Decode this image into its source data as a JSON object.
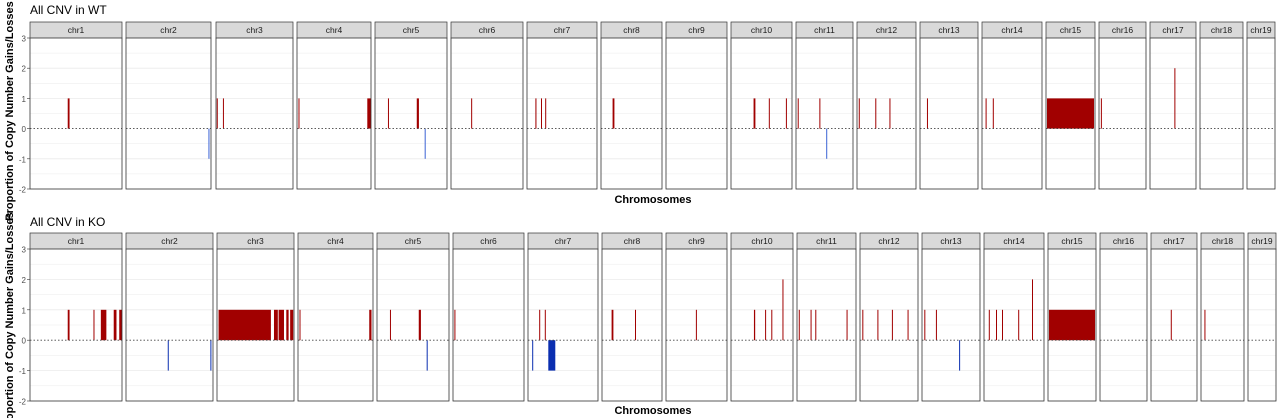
{
  "colors": {
    "gain": "#a10000",
    "loss_wt": "#3a62d4",
    "loss_ko": "#0a2eb0",
    "strip": "#d9d9d9",
    "grid": "#ebebeb",
    "baseline": "#444444"
  },
  "chart_data": [
    {
      "type": "bar",
      "title": "All CNV in WT",
      "xlabel": "Chromosomes",
      "ylabel": "Proportion of Copy Number Gains/Losses",
      "ylim": [
        -2,
        3
      ],
      "yticks": [
        "3",
        "2",
        "1",
        "0",
        "-1",
        "-2"
      ],
      "grid": true,
      "panels": [
        {
          "chr": "chr1",
          "bars": [
            {
              "pos": 0.41,
              "w": 0.02,
              "v": 1
            }
          ]
        },
        {
          "chr": "chr2",
          "bars": [
            {
              "pos": 0.97,
              "w": 0.01,
              "v": -1
            }
          ]
        },
        {
          "chr": "chr3",
          "bars": [
            {
              "pos": 0.01,
              "w": 0.01,
              "v": 1
            },
            {
              "pos": 0.09,
              "w": 0.01,
              "v": 1
            }
          ]
        },
        {
          "chr": "chr4",
          "bars": [
            {
              "pos": 0.02,
              "w": 0.01,
              "v": 1
            },
            {
              "pos": 0.95,
              "w": 0.05,
              "v": 1
            }
          ]
        },
        {
          "chr": "chr5",
          "bars": [
            {
              "pos": 0.18,
              "w": 0.01,
              "v": 1
            },
            {
              "pos": 0.58,
              "w": 0.03,
              "v": 1
            },
            {
              "pos": 0.69,
              "w": 0.01,
              "v": -1
            }
          ]
        },
        {
          "chr": "chr6",
          "bars": [
            {
              "pos": 0.28,
              "w": 0.01,
              "v": 1
            }
          ]
        },
        {
          "chr": "chr7",
          "bars": [
            {
              "pos": 0.12,
              "w": 0.015,
              "v": 1
            },
            {
              "pos": 0.2,
              "w": 0.01,
              "v": 1
            },
            {
              "pos": 0.26,
              "w": 0.01,
              "v": 1
            }
          ]
        },
        {
          "chr": "chr8",
          "bars": [
            {
              "pos": 0.19,
              "w": 0.03,
              "v": 1
            }
          ]
        },
        {
          "chr": "chr9",
          "bars": []
        },
        {
          "chr": "chr10",
          "bars": [
            {
              "pos": 0.37,
              "w": 0.03,
              "v": 1
            },
            {
              "pos": 0.62,
              "w": 0.01,
              "v": 1
            },
            {
              "pos": 0.9,
              "w": 0.01,
              "v": 1
            }
          ]
        },
        {
          "chr": "chr11",
          "bars": [
            {
              "pos": 0.03,
              "w": 0.01,
              "v": 1
            },
            {
              "pos": 0.41,
              "w": 0.01,
              "v": 1
            },
            {
              "pos": 0.53,
              "w": 0.01,
              "v": -1
            }
          ]
        },
        {
          "chr": "chr12",
          "bars": [
            {
              "pos": 0.03,
              "w": 0.01,
              "v": 1
            },
            {
              "pos": 0.31,
              "w": 0.01,
              "v": 1
            },
            {
              "pos": 0.55,
              "w": 0.01,
              "v": 1
            }
          ]
        },
        {
          "chr": "chr13",
          "bars": [
            {
              "pos": 0.12,
              "w": 0.01,
              "v": 1
            }
          ]
        },
        {
          "chr": "chr14",
          "bars": [
            {
              "pos": 0.06,
              "w": 0.01,
              "v": 1
            },
            {
              "pos": 0.18,
              "w": 0.01,
              "v": 1
            }
          ]
        },
        {
          "chr": "chr15",
          "bars": [
            {
              "pos": 0.02,
              "w": 0.96,
              "v": 1
            }
          ]
        },
        {
          "chr": "chr16",
          "bars": [
            {
              "pos": 0.04,
              "w": 0.02,
              "v": 1
            }
          ]
        },
        {
          "chr": "chr17",
          "bars": [
            {
              "pos": 0.53,
              "w": 0.02,
              "v": 2
            }
          ]
        },
        {
          "chr": "chr18",
          "bars": []
        },
        {
          "chr": "chr19",
          "bars": []
        }
      ]
    },
    {
      "type": "bar",
      "title": "All CNV in KO",
      "xlabel": "Chromosomes",
      "ylabel": "Proportion of Copy Number Gains/Losses",
      "ylim": [
        -2,
        3
      ],
      "yticks": [
        "3",
        "2",
        "1",
        "0",
        "-1",
        "-2"
      ],
      "grid": true,
      "panels": [
        {
          "chr": "chr1",
          "bars": [
            {
              "pos": 0.41,
              "w": 0.02,
              "v": 1
            },
            {
              "pos": 0.69,
              "w": 0.01,
              "v": 1
            },
            {
              "pos": 0.77,
              "w": 0.06,
              "v": 1
            },
            {
              "pos": 0.91,
              "w": 0.03,
              "v": 1
            },
            {
              "pos": 0.97,
              "w": 0.03,
              "v": 1
            }
          ]
        },
        {
          "chr": "chr2",
          "bars": [
            {
              "pos": 0.48,
              "w": 0.01,
              "v": -1
            },
            {
              "pos": 0.97,
              "w": 0.01,
              "v": -1
            }
          ]
        },
        {
          "chr": "chr3",
          "bars": [
            {
              "pos": 0.02,
              "w": 0.68,
              "v": 1
            },
            {
              "pos": 0.74,
              "w": 0.05,
              "v": 1
            },
            {
              "pos": 0.8,
              "w": 0.07,
              "v": 1
            },
            {
              "pos": 0.9,
              "w": 0.03,
              "v": 1
            },
            {
              "pos": 0.95,
              "w": 0.04,
              "v": 1
            }
          ]
        },
        {
          "chr": "chr4",
          "bars": [
            {
              "pos": 0.02,
              "w": 0.01,
              "v": 1
            },
            {
              "pos": 0.95,
              "w": 0.03,
              "v": 1
            }
          ]
        },
        {
          "chr": "chr5",
          "bars": [
            {
              "pos": 0.18,
              "w": 0.01,
              "v": 1
            },
            {
              "pos": 0.58,
              "w": 0.03,
              "v": 1
            },
            {
              "pos": 0.69,
              "w": 0.01,
              "v": -1
            }
          ]
        },
        {
          "chr": "chr6",
          "bars": [
            {
              "pos": 0.02,
              "w": 0.01,
              "v": 1
            }
          ]
        },
        {
          "chr": "chr7",
          "bars": [
            {
              "pos": 0.06,
              "w": 0.01,
              "v": -1
            },
            {
              "pos": 0.16,
              "w": 0.01,
              "v": 1
            },
            {
              "pos": 0.24,
              "w": 0.01,
              "v": 1
            },
            {
              "pos": 0.29,
              "w": 0.1,
              "v": -1
            }
          ]
        },
        {
          "chr": "chr8",
          "bars": [
            {
              "pos": 0.16,
              "w": 0.03,
              "v": 1
            },
            {
              "pos": 0.55,
              "w": 0.01,
              "v": 1
            }
          ]
        },
        {
          "chr": "chr9",
          "bars": [
            {
              "pos": 0.49,
              "w": 0.01,
              "v": 1
            }
          ]
        },
        {
          "chr": "chr10",
          "bars": [
            {
              "pos": 0.37,
              "w": 0.02,
              "v": 1
            },
            {
              "pos": 0.55,
              "w": 0.01,
              "v": 1
            },
            {
              "pos": 0.65,
              "w": 0.01,
              "v": 1
            },
            {
              "pos": 0.83,
              "w": 0.01,
              "v": 2
            }
          ]
        },
        {
          "chr": "chr11",
          "bars": [
            {
              "pos": 0.03,
              "w": 0.01,
              "v": 1
            },
            {
              "pos": 0.23,
              "w": 0.01,
              "v": 1
            },
            {
              "pos": 0.31,
              "w": 0.01,
              "v": 1
            },
            {
              "pos": 0.84,
              "w": 0.01,
              "v": 1
            }
          ]
        },
        {
          "chr": "chr12",
          "bars": [
            {
              "pos": 0.04,
              "w": 0.01,
              "v": 1
            },
            {
              "pos": 0.3,
              "w": 0.01,
              "v": 1
            },
            {
              "pos": 0.55,
              "w": 0.01,
              "v": 1
            },
            {
              "pos": 0.82,
              "w": 0.01,
              "v": 1
            }
          ]
        },
        {
          "chr": "chr13",
          "bars": [
            {
              "pos": 0.04,
              "w": 0.01,
              "v": 1
            },
            {
              "pos": 0.24,
              "w": 0.01,
              "v": 1
            },
            {
              "pos": 0.64,
              "w": 0.01,
              "v": -1
            }
          ]
        },
        {
          "chr": "chr14",
          "bars": [
            {
              "pos": 0.08,
              "w": 0.01,
              "v": 1
            },
            {
              "pos": 0.2,
              "w": 0.01,
              "v": 1
            },
            {
              "pos": 0.3,
              "w": 0.01,
              "v": 1
            },
            {
              "pos": 0.57,
              "w": 0.01,
              "v": 1
            },
            {
              "pos": 0.8,
              "w": 0.01,
              "v": 2
            }
          ]
        },
        {
          "chr": "chr15",
          "bars": [
            {
              "pos": 0.02,
              "w": 0.96,
              "v": 1
            }
          ]
        },
        {
          "chr": "chr16",
          "bars": []
        },
        {
          "chr": "chr17",
          "bars": [
            {
              "pos": 0.43,
              "w": 0.02,
              "v": 1
            }
          ]
        },
        {
          "chr": "chr18",
          "bars": [
            {
              "pos": 0.08,
              "w": 0.02,
              "v": 1
            }
          ]
        },
        {
          "chr": "chr19",
          "bars": []
        }
      ]
    }
  ]
}
